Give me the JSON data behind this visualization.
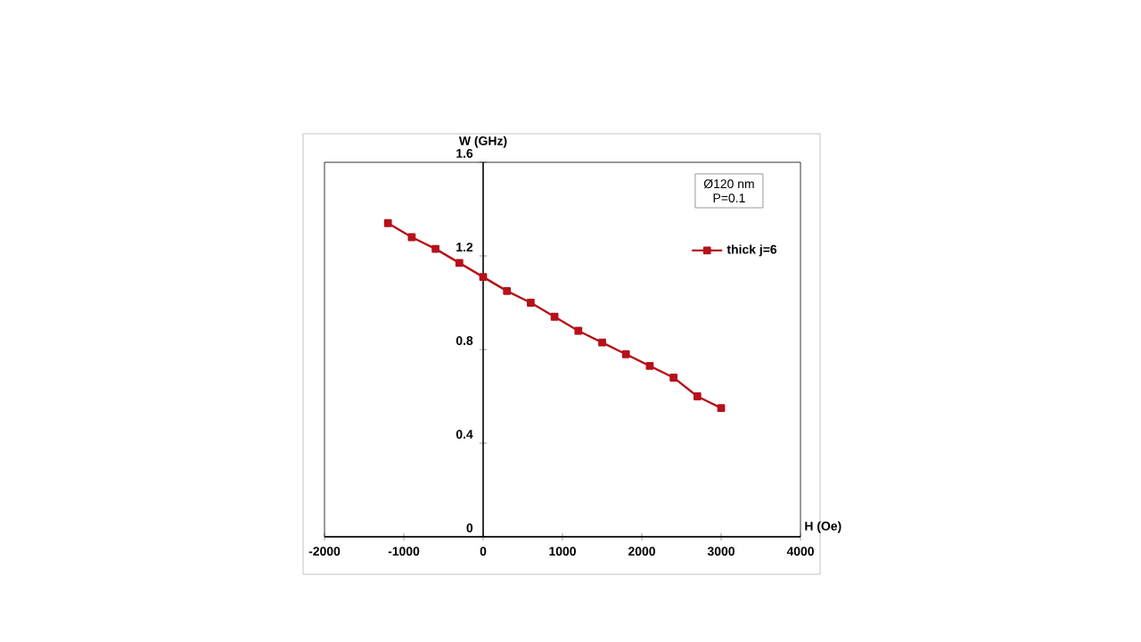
{
  "chart_data": {
    "type": "line",
    "xlabel": "H (Oe)",
    "ylabel": "W (GHz)",
    "annotations": [
      "Ø120 nm",
      "P=0.1"
    ],
    "x": [
      -1200,
      -900,
      -600,
      -300,
      0,
      300,
      600,
      900,
      1200,
      1500,
      1800,
      2100,
      2400,
      2700,
      3000
    ],
    "series": [
      {
        "name": "thick j=6",
        "color": "#b5121b",
        "values": [
          1.34,
          1.28,
          1.23,
          1.17,
          1.11,
          1.05,
          1.0,
          0.94,
          0.88,
          0.83,
          0.78,
          0.73,
          0.68,
          0.6,
          0.55
        ]
      }
    ],
    "xlim": [
      -2000,
      4000
    ],
    "xticks": [
      -2000,
      -1000,
      0,
      1000,
      2000,
      3000,
      4000
    ],
    "ylim": [
      0,
      1.6
    ],
    "yticks": [
      0,
      0.4,
      0.8,
      1.2,
      1.6
    ],
    "grid": false,
    "legend": "top right",
    "marker": "square",
    "line_style": "solid"
  }
}
